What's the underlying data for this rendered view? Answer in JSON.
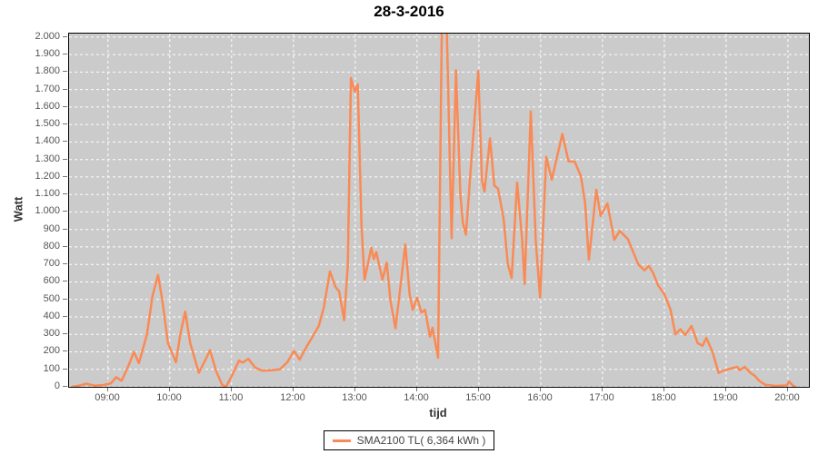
{
  "title": "28-3-2016",
  "legend": {
    "label": "SMA2100 TL( 6,364 kWh )"
  },
  "colors": {
    "plot_bg": "#cbcbcb",
    "grid": "#ffffff",
    "line": "#fa8a55",
    "tick": "#777777",
    "tick_label": "#555555",
    "axis_title": "#333333",
    "border": "#000000"
  },
  "chart_data": {
    "type": "line",
    "title": "28-3-2016",
    "xlabel": "tijd",
    "ylabel": "Watt",
    "grid": true,
    "legend_position": "bottom",
    "xlim": [
      8.37,
      20.34
    ],
    "ylim": [
      0,
      2020
    ],
    "x_ticks": [
      9,
      10,
      11,
      12,
      13,
      14,
      15,
      16,
      17,
      18,
      19,
      20
    ],
    "x_tick_labels": [
      "09:00",
      "10:00",
      "11:00",
      "12:00",
      "13:00",
      "14:00",
      "15:00",
      "16:00",
      "17:00",
      "18:00",
      "19:00",
      "20:00"
    ],
    "y_ticks": [
      0,
      100,
      200,
      300,
      400,
      500,
      600,
      700,
      800,
      900,
      1000,
      1100,
      1200,
      1300,
      1400,
      1500,
      1600,
      1700,
      1800,
      1900,
      2000
    ],
    "y_tick_labels": [
      "0",
      "100",
      "200",
      "300",
      "400",
      "500",
      "600",
      "700",
      "800",
      "900",
      "1.000",
      "1.100",
      "1.200",
      "1.300",
      "1.400",
      "1.500",
      "1.600",
      "1.700",
      "1.800",
      "1.900",
      "2.000"
    ],
    "series": [
      {
        "name": "SMA2100 TL( 6,364 kWh )",
        "color": "#fa8a55",
        "x": [
          8.42,
          8.55,
          8.65,
          8.78,
          8.92,
          9.05,
          9.13,
          9.22,
          9.33,
          9.42,
          9.5,
          9.63,
          9.72,
          9.81,
          9.88,
          9.97,
          10.1,
          10.17,
          10.25,
          10.33,
          10.47,
          10.57,
          10.65,
          10.75,
          10.85,
          10.91,
          11.0,
          11.12,
          11.18,
          11.27,
          11.38,
          11.5,
          11.65,
          11.78,
          11.9,
          12.01,
          12.1,
          12.22,
          12.31,
          12.41,
          12.49,
          12.59,
          12.68,
          12.74,
          12.82,
          12.88,
          12.93,
          12.99,
          13.04,
          13.1,
          13.15,
          13.26,
          13.3,
          13.34,
          13.44,
          13.51,
          13.57,
          13.65,
          13.74,
          13.81,
          13.88,
          13.93,
          14.0,
          14.07,
          14.13,
          14.21,
          14.25,
          14.34,
          14.4,
          14.48,
          14.56,
          14.63,
          14.7,
          14.74,
          14.79,
          14.88,
          14.99,
          15.05,
          15.09,
          15.18,
          15.25,
          15.31,
          15.4,
          15.47,
          15.53,
          15.62,
          15.7,
          15.74,
          15.84,
          15.92,
          15.99,
          16.09,
          16.18,
          16.35,
          16.45,
          16.55,
          16.65,
          16.72,
          16.78,
          16.9,
          16.97,
          17.08,
          17.19,
          17.28,
          17.41,
          17.58,
          17.68,
          17.75,
          17.82,
          17.9,
          18.0,
          18.1,
          18.18,
          18.26,
          18.34,
          18.44,
          18.54,
          18.62,
          18.68,
          18.78,
          18.88,
          18.97,
          19.07,
          19.18,
          19.22,
          19.3,
          19.4,
          19.47,
          19.53,
          19.63,
          19.8,
          19.98,
          20.02,
          20.08,
          20.12
        ],
        "y": [
          0,
          8,
          18,
          6,
          10,
          20,
          55,
          35,
          120,
          200,
          135,
          300,
          520,
          640,
          490,
          250,
          140,
          300,
          430,
          250,
          80,
          150,
          210,
          90,
          10,
          0,
          60,
          150,
          138,
          160,
          110,
          92,
          95,
          100,
          140,
          205,
          156,
          234,
          286,
          348,
          452,
          660,
          571,
          545,
          381,
          700,
          1766,
          1688,
          1730,
          926,
          613,
          795,
          730,
          770,
          613,
          710,
          493,
          335,
          600,
          815,
          528,
          440,
          510,
          425,
          440,
          286,
          338,
          166,
          2060,
          2060,
          850,
          1810,
          1100,
          940,
          870,
          1300,
          1805,
          1178,
          1117,
          1420,
          1150,
          1134,
          961,
          700,
          623,
          1168,
          840,
          588,
          1575,
          840,
          510,
          1315,
          1185,
          1445,
          1290,
          1288,
          1205,
          1050,
          727,
          1127,
          977,
          1049,
          840,
          892,
          845,
          700,
          666,
          692,
          650,
          580,
          530,
          442,
          300,
          330,
          296,
          348,
          250,
          234,
          280,
          200,
          80,
          94,
          104,
          114,
          95,
          114,
          78,
          62,
          36,
          12,
          5,
          8,
          30,
          8,
          0
        ]
      }
    ]
  }
}
